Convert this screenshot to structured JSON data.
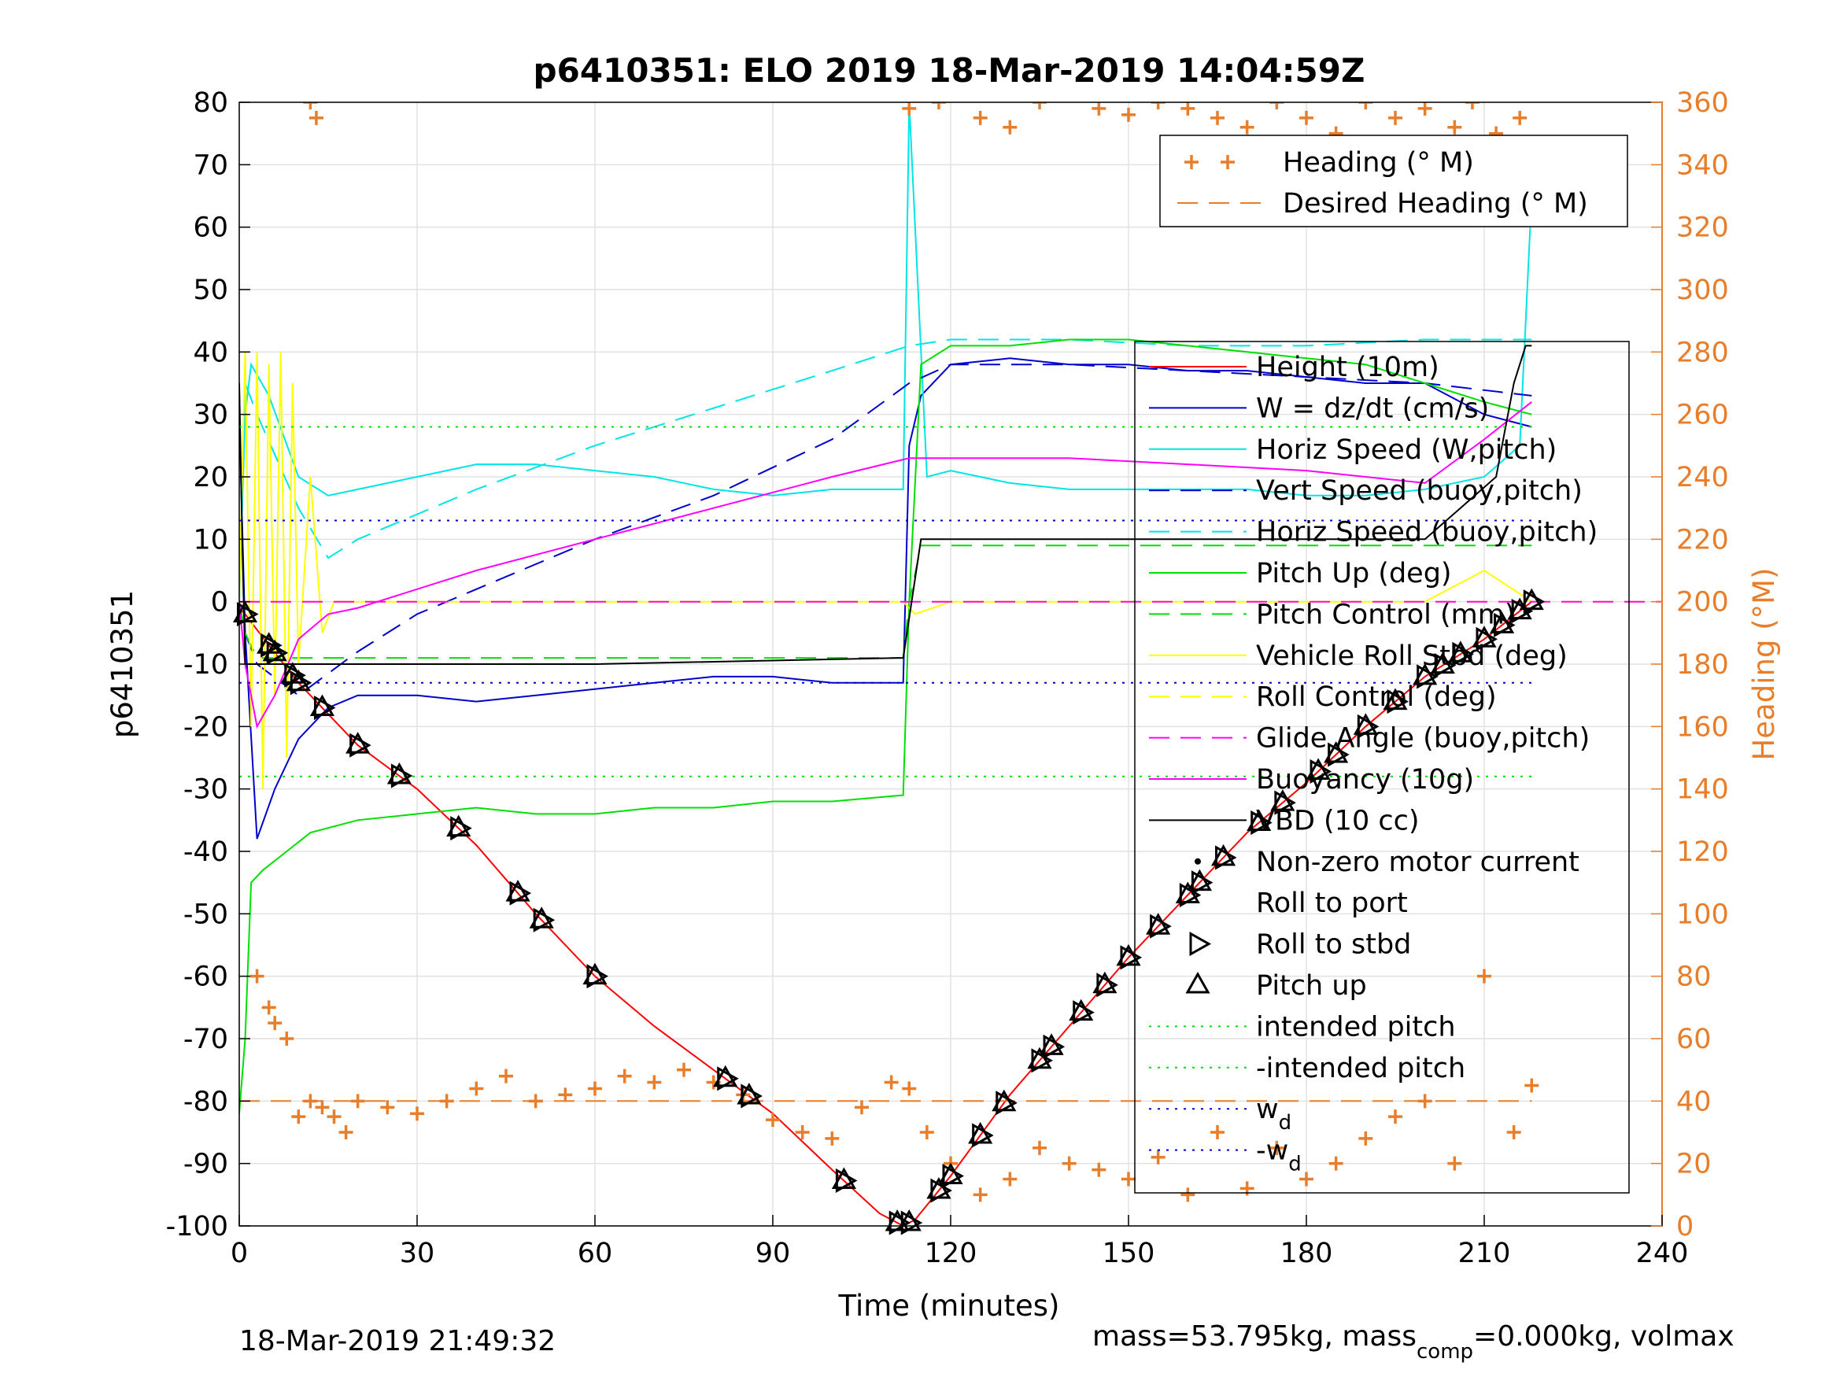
{
  "chart_data": {
    "type": "line",
    "title": "p6410351: ELO 2019 18-Mar-2019 14:04:59Z",
    "xlabel": "Time (minutes)",
    "ylabel": "p6410351",
    "y2label": "Heading (°M)",
    "xlim": [
      0,
      240
    ],
    "ylim": [
      -100,
      80
    ],
    "y2lim": [
      0,
      360
    ],
    "xticks": [
      "0",
      "30",
      "60",
      "90",
      "120",
      "150",
      "180",
      "210",
      "240"
    ],
    "yticks": [
      "80",
      "70",
      "60",
      "50",
      "40",
      "30",
      "20",
      "10",
      "0",
      "-10",
      "-20",
      "-30",
      "-40",
      "-50",
      "-60",
      "-70",
      "-80",
      "-90",
      "-100"
    ],
    "y2ticks": [
      "360",
      "340",
      "320",
      "300",
      "280",
      "260",
      "240",
      "220",
      "200",
      "180",
      "160",
      "140",
      "120",
      "100",
      "80",
      "60",
      "40",
      "20",
      "0"
    ],
    "grid": true,
    "legend_top": [
      {
        "name": "Heading (° M)",
        "color": "#e87d2a",
        "style": "plus"
      },
      {
        "name": "Desired Heading (° M)",
        "color": "#e87d2a",
        "style": "dashed"
      }
    ],
    "legend_main": [
      {
        "name": "Height (10m)",
        "color": "#ff0000",
        "style": "solid"
      },
      {
        "name": "W = dz/dt (cm/s)",
        "color": "#0000cc",
        "style": "solid"
      },
      {
        "name": "Horiz Speed (W,pitch)",
        "color": "#00e5e5",
        "style": "solid"
      },
      {
        "name": "Vert Speed (buoy,pitch)",
        "color": "#0000cc",
        "style": "dashed"
      },
      {
        "name": "Horiz Speed (buoy,pitch)",
        "color": "#00e5e5",
        "style": "dashed"
      },
      {
        "name": "Pitch Up (deg)",
        "color": "#00e000",
        "style": "solid"
      },
      {
        "name": "Pitch Control (mm)",
        "color": "#00e000",
        "style": "dashed"
      },
      {
        "name": "Vehicle Roll Stbd (deg)",
        "color": "#ffff00",
        "style": "solid"
      },
      {
        "name": "Roll Control (deg)",
        "color": "#ffff00",
        "style": "dashed"
      },
      {
        "name": "Glide Angle (buoy,pitch)",
        "color": "#ff00ff",
        "style": "dashed"
      },
      {
        "name": "Buoyancy (10g)",
        "color": "#ff00ff",
        "style": "solid"
      },
      {
        "name": "VBD (10 cc)",
        "color": "#000000",
        "style": "solid"
      },
      {
        "name": "Non-zero motor current",
        "color": "#000000",
        "style": "dot"
      },
      {
        "name": "Roll to port",
        "color": "#000000",
        "style": "none"
      },
      {
        "name": "Roll to stbd",
        "color": "#000000",
        "style": "tri-right"
      },
      {
        "name": "Pitch up",
        "color": "#000000",
        "style": "tri-up"
      },
      {
        "name": "intended pitch",
        "color": "#00e000",
        "style": "dotted"
      },
      {
        "name": "-intended pitch",
        "color": "#00e000",
        "style": "dotted"
      },
      {
        "name": "w_d",
        "color": "#0000cc",
        "style": "dotted"
      },
      {
        "name": "-w_d",
        "color": "#0000cc",
        "style": "dotted"
      }
    ],
    "series": [
      {
        "name": "Height (10m)",
        "x": [
          0,
          1,
          5,
          10,
          20,
          30,
          40,
          50,
          60,
          70,
          80,
          90,
          100,
          108,
          112,
          114,
          120,
          130,
          140,
          150,
          160,
          170,
          180,
          190,
          200,
          210,
          218
        ],
        "y": [
          -1,
          -2,
          -7,
          -13,
          -23,
          -30,
          -39,
          -50,
          -60,
          -68,
          -75,
          -82,
          -91,
          -98,
          -100,
          -99,
          -92,
          -79,
          -68,
          -57,
          -47,
          -37,
          -29,
          -20,
          -12,
          -6,
          0
        ]
      },
      {
        "name": "W = dz/dt (cm/s)",
        "x": [
          0,
          1,
          3,
          6,
          10,
          15,
          20,
          30,
          40,
          50,
          60,
          70,
          80,
          90,
          100,
          112,
          113,
          115,
          120,
          130,
          140,
          150,
          160,
          170,
          180,
          190,
          200,
          210,
          218
        ],
        "y": [
          30,
          -5,
          -38,
          -30,
          -22,
          -17,
          -15,
          -15,
          -16,
          -15,
          -14,
          -13,
          -12,
          -12,
          -13,
          -13,
          25,
          33,
          38,
          39,
          38,
          38,
          37,
          37,
          36,
          35,
          35,
          30,
          28
        ]
      },
      {
        "name": "Horiz Speed (W,pitch)",
        "x": [
          0,
          1,
          2,
          5,
          10,
          15,
          20,
          30,
          40,
          50,
          60,
          70,
          80,
          90,
          100,
          112,
          113,
          116,
          120,
          130,
          140,
          150,
          160,
          170,
          180,
          190,
          200,
          210,
          216,
          218
        ],
        "y": [
          0,
          30,
          38,
          33,
          20,
          17,
          18,
          20,
          22,
          22,
          21,
          20,
          18,
          17,
          18,
          18,
          80,
          20,
          21,
          19,
          18,
          18,
          18,
          18,
          17,
          17,
          18,
          20,
          25,
          65
        ]
      },
      {
        "name": "Vert Speed (buoy,pitch)",
        "x": [
          0,
          1,
          3,
          10,
          20,
          30,
          40,
          60,
          80,
          100,
          113,
          120,
          140,
          160,
          180,
          200,
          218
        ],
        "y": [
          0,
          -5,
          -10,
          -15,
          -8,
          -2,
          2,
          10,
          17,
          26,
          35,
          38,
          38,
          37,
          36,
          35,
          33
        ]
      },
      {
        "name": "Horiz Speed (buoy,pitch)",
        "x": [
          0,
          1,
          3,
          10,
          15,
          20,
          40,
          60,
          80,
          100,
          113,
          120,
          140,
          160,
          180,
          200,
          218
        ],
        "y": [
          0,
          35,
          30,
          15,
          7,
          10,
          18,
          25,
          31,
          37,
          41,
          42,
          42,
          41,
          41,
          42,
          42
        ]
      },
      {
        "name": "Pitch Up (deg)",
        "x": [
          0,
          1,
          2,
          4,
          8,
          12,
          20,
          30,
          40,
          50,
          60,
          70,
          80,
          90,
          100,
          112,
          113,
          115,
          120,
          130,
          140,
          150,
          160,
          170,
          180,
          190,
          200,
          210,
          218
        ],
        "y": [
          -82,
          -70,
          -45,
          -43,
          -40,
          -37,
          -35,
          -34,
          -33,
          -34,
          -34,
          -33,
          -33,
          -32,
          -32,
          -31,
          0,
          38,
          41,
          41,
          42,
          42,
          41,
          40,
          39,
          38,
          35,
          32,
          30
        ]
      },
      {
        "name": "Pitch Control (mm)",
        "x": [
          0,
          1,
          3,
          10,
          60,
          112,
          113,
          115,
          218
        ],
        "y": [
          0,
          -5,
          -9,
          -9,
          -9,
          -9,
          0,
          9,
          9
        ]
      },
      {
        "name": "Vehicle Roll Stbd (deg)",
        "x": [
          0,
          1,
          2,
          3,
          4,
          5,
          6,
          7,
          8,
          9,
          10,
          12,
          14,
          16,
          20,
          30,
          40,
          60,
          80,
          100,
          112,
          114,
          120,
          140,
          160,
          180,
          200,
          210,
          218
        ],
        "y": [
          0,
          40,
          -20,
          40,
          -30,
          38,
          -15,
          40,
          -25,
          35,
          -10,
          20,
          -5,
          0,
          0,
          0,
          0,
          0,
          0,
          0,
          0,
          -2,
          0,
          0,
          0,
          0,
          0,
          5,
          0
        ]
      },
      {
        "name": "Roll Control (deg)",
        "x": [
          0,
          240
        ],
        "y": [
          0,
          0
        ]
      },
      {
        "name": "Glide Angle (buoy,pitch)",
        "x": [
          0,
          240
        ],
        "y": [
          0,
          0
        ]
      },
      {
        "name": "Buoyancy (10g)",
        "x": [
          0,
          1,
          3,
          6,
          10,
          15,
          20,
          40,
          60,
          80,
          100,
          113,
          120,
          140,
          160,
          180,
          190,
          200,
          210,
          218
        ],
        "y": [
          0,
          -10,
          -20,
          -15,
          -6,
          -2,
          -1,
          5,
          10,
          15,
          20,
          23,
          23,
          23,
          22,
          21,
          20,
          19,
          26,
          32
        ]
      },
      {
        "name": "VBD (10 cc)",
        "x": [
          0,
          0.5,
          1,
          2,
          10,
          60,
          112,
          115,
          140,
          160,
          180,
          200,
          212,
          215,
          217,
          218
        ],
        "y": [
          35,
          10,
          -10,
          -10,
          -10,
          -10,
          -9,
          10,
          10,
          10,
          10,
          10,
          20,
          35,
          41,
          41
        ]
      },
      {
        "name": "intended pitch",
        "x": [
          0,
          218
        ],
        "y": [
          28,
          28
        ]
      },
      {
        "name": "-intended pitch",
        "x": [
          0,
          218
        ],
        "y": [
          -28,
          -28
        ]
      },
      {
        "name": "w_d",
        "x": [
          0,
          218
        ],
        "y": [
          13,
          13
        ]
      },
      {
        "name": "-w_d",
        "x": [
          0,
          218
        ],
        "y": [
          -13,
          -13
        ]
      },
      {
        "name": "Desired Heading (° M)",
        "axis": "right",
        "x": [
          0,
          218
        ],
        "y": [
          40,
          40
        ]
      },
      {
        "name": "Heading (° M)",
        "axis": "right",
        "x": [
          3,
          5,
          6,
          8,
          10,
          12,
          14,
          16,
          18,
          20,
          25,
          30,
          35,
          40,
          45,
          50,
          55,
          60,
          65,
          70,
          75,
          80,
          85,
          90,
          95,
          100,
          105,
          110,
          113,
          116,
          120,
          125,
          130,
          135,
          140,
          145,
          150,
          155,
          160,
          165,
          170,
          175,
          180,
          185,
          190,
          195,
          200,
          205,
          210,
          215,
          218
        ],
        "y": [
          80,
          70,
          65,
          60,
          35,
          40,
          38,
          35,
          30,
          40,
          38,
          36,
          40,
          44,
          48,
          40,
          42,
          44,
          48,
          46,
          50,
          46,
          42,
          34,
          30,
          28,
          38,
          46,
          44,
          30,
          20,
          10,
          15,
          25,
          20,
          18,
          15,
          22,
          10,
          30,
          12,
          25,
          15,
          20,
          28,
          35,
          40,
          20,
          80,
          30,
          45
        ]
      },
      {
        "name": "Heading (° M)",
        "axis": "right",
        "wrapped": true,
        "x": [
          12,
          13,
          113,
          118,
          125,
          130,
          135,
          145,
          150,
          155,
          160,
          165,
          170,
          175,
          180,
          185,
          190,
          195,
          200,
          205,
          208,
          212,
          216
        ],
        "y": [
          360,
          355,
          358,
          360,
          355,
          352,
          360,
          358,
          356,
          360,
          358,
          355,
          352,
          360,
          355,
          350,
          360,
          355,
          358,
          352,
          360,
          350,
          355
        ]
      }
    ],
    "markers": {
      "pitch_up_times": [
        1,
        5,
        6,
        9,
        10,
        14,
        20,
        27,
        37,
        47,
        51,
        60,
        82,
        86,
        102,
        111,
        113,
        118,
        120,
        125,
        129,
        135,
        137,
        142,
        146,
        150,
        155,
        160,
        162,
        166,
        172,
        176,
        182,
        185,
        190,
        195,
        200,
        203,
        206,
        210,
        213,
        216,
        218
      ],
      "roll_to_stbd_times": [
        1,
        5,
        6,
        9,
        10,
        14,
        20,
        27,
        37,
        47,
        51,
        60,
        82,
        86,
        102,
        111,
        113,
        118,
        120,
        125,
        129,
        135,
        137,
        142,
        146,
        150,
        155,
        160,
        162,
        166,
        172,
        176,
        182,
        185,
        190,
        195,
        200,
        203,
        206,
        210,
        213,
        216,
        218
      ]
    }
  },
  "footer": {
    "timestamp": "18-Mar-2019 21:49:32",
    "mass_text_a": "mass=53.795kg, mass",
    "mass_sub": "comp",
    "mass_text_b": "=0.000kg, volmax"
  },
  "legend_sub": {
    "wd_label": "w",
    "neg_wd_label": "-w",
    "wd_sub": "d"
  },
  "colors": {
    "heading": "#e87d2a",
    "axis": "#000000",
    "grid": "#e1e1e1"
  }
}
